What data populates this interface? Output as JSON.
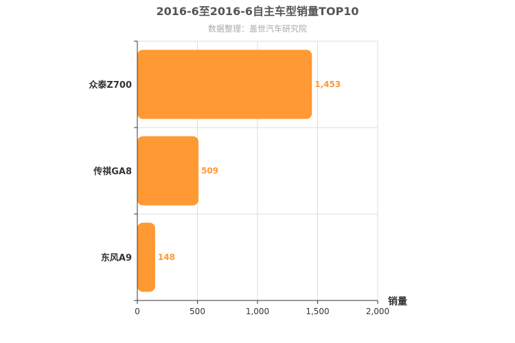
{
  "chart_data": {
    "type": "bar",
    "orientation": "horizontal",
    "title": "2016-6至2016-6自主车型销量TOP10",
    "subtitle": "数据整理：盖世汽车研究院",
    "xlabel": "销量",
    "ylabel": "",
    "categories": [
      "众泰Z700",
      "传祺GA8",
      "东风A9"
    ],
    "values": [
      1453,
      509,
      148
    ],
    "value_labels": [
      "1,453",
      "509",
      "148"
    ],
    "xlim": [
      0,
      2000
    ],
    "xticks": [
      0,
      500,
      1000,
      1500,
      2000
    ],
    "xtick_labels": [
      "0",
      "500",
      "1,000",
      "1,500",
      "2,000"
    ],
    "grid": true,
    "legend": "none",
    "bar_color": "#ff9933",
    "label_color": "#ff9933"
  }
}
